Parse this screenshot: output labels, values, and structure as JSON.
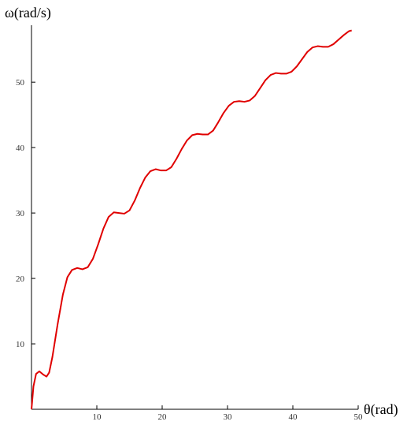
{
  "chart_data": {
    "type": "line",
    "x_label": "θ(rad)",
    "y_label": "ω(rad/s)",
    "xlim": [
      0,
      50
    ],
    "ylim": [
      0,
      58.7
    ],
    "xticks": [
      10,
      20,
      30,
      40,
      50
    ],
    "yticks": [
      10,
      20,
      30,
      40,
      50
    ],
    "series": [
      {
        "color": "#e00000",
        "x": [
          0,
          0.3,
          0.7,
          1.2,
          1.8,
          2.3,
          2.7,
          3.2,
          4,
          4.8,
          5.5,
          6.2,
          7,
          7.8,
          8.6,
          9.4,
          10.2,
          11,
          11.8,
          12.6,
          13.4,
          14.2,
          15,
          15.8,
          16.6,
          17.4,
          18.2,
          19,
          19.8,
          20.6,
          21.4,
          22.2,
          23,
          23.8,
          24.6,
          25.4,
          26.2,
          27,
          27.8,
          28.6,
          29.4,
          30.2,
          31,
          31.8,
          32.6,
          33.4,
          34.2,
          35,
          35.8,
          36.6,
          37.4,
          38.2,
          39,
          39.8,
          40.6,
          41.4,
          42.2,
          43,
          43.8,
          44.6,
          45.4,
          46.2,
          47,
          47.8,
          48.6,
          49
        ],
        "values": [
          0,
          3.5,
          5.4,
          5.8,
          5.3,
          5.0,
          5.6,
          8,
          13,
          17.5,
          20.2,
          21.3,
          21.6,
          21.4,
          21.7,
          23,
          25.2,
          27.6,
          29.4,
          30.1,
          30,
          29.9,
          30.4,
          31.9,
          33.8,
          35.4,
          36.4,
          36.7,
          36.5,
          36.5,
          37,
          38.3,
          39.8,
          41.1,
          41.9,
          42.1,
          42,
          42,
          42.6,
          43.9,
          45.3,
          46.4,
          47,
          47.1,
          47,
          47.2,
          47.9,
          49.1,
          50.3,
          51.1,
          51.4,
          51.3,
          51.3,
          51.6,
          52.4,
          53.5,
          54.6,
          55.3,
          55.5,
          55.4,
          55.4,
          55.8,
          56.5,
          57.2,
          57.8,
          57.9
        ]
      }
    ]
  }
}
